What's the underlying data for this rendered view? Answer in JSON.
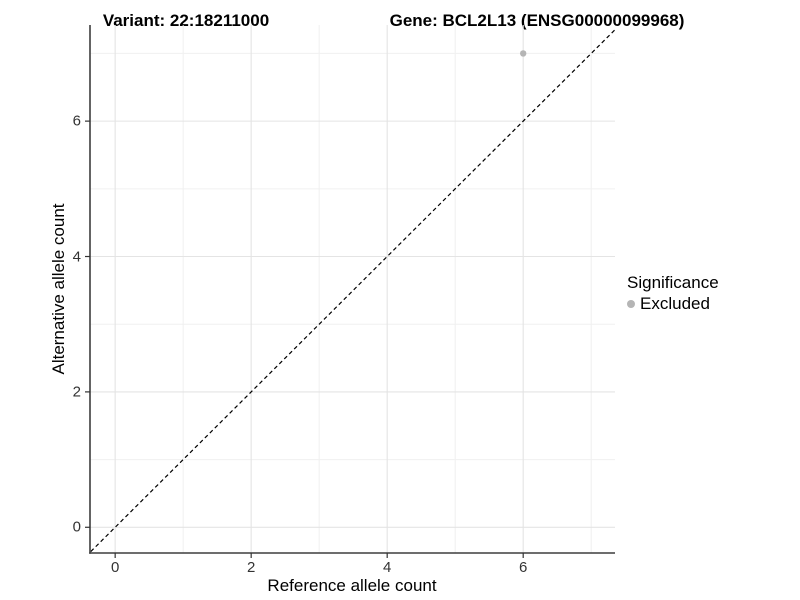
{
  "header": {
    "variant_title": "Variant: 22:18211000",
    "gene_title": "Gene: BCL2L13 (ENSG00000099968)"
  },
  "legend": {
    "title": "Significance",
    "items": [
      {
        "label": "Excluded",
        "color": "#b5b5b5"
      }
    ]
  },
  "chart_data": {
    "type": "scatter",
    "title": "Variant: 22:18211000  |  Gene: BCL2L13 (ENSG00000099968)",
    "xlabel": "Reference allele count",
    "ylabel": "Alternative allele count",
    "xlim": [
      -0.37,
      7.35
    ],
    "ylim": [
      -0.38,
      7.42
    ],
    "x_major_ticks": [
      0,
      2,
      4,
      6
    ],
    "y_major_ticks": [
      0,
      2,
      4,
      6
    ],
    "x_minor_ticks": [
      1,
      3,
      5,
      7
    ],
    "y_minor_ticks": [
      1,
      3,
      5,
      7
    ],
    "grid": true,
    "legend_position": "right",
    "series": [
      {
        "name": "Excluded",
        "color": "#b5b5b5",
        "points": [
          {
            "x": 6,
            "y": 7
          }
        ]
      }
    ],
    "reference_line": {
      "type": "identity y = x",
      "style": "dashed",
      "color": "#000000"
    },
    "colors": {
      "grid_major": "#e4e4e4",
      "grid_minor": "#f0f0f0",
      "axis_line": "#3d3d3d",
      "tick_mark": "#333333",
      "point": "#b5b5b5"
    }
  }
}
